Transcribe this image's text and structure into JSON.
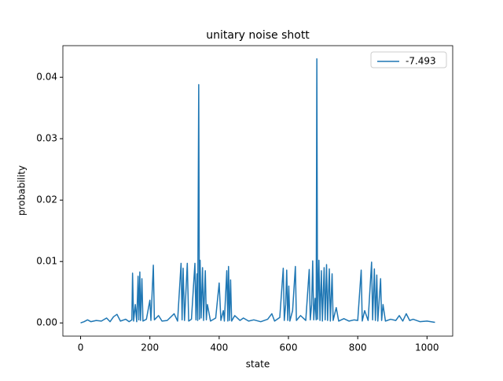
{
  "chart_data": {
    "type": "line",
    "title": "unitary noise shott",
    "x_label": "state",
    "y_label": "probability",
    "x": [
      0,
      10,
      20,
      30,
      45,
      60,
      75,
      85,
      95,
      105,
      115,
      130,
      140,
      148,
      150,
      153,
      158,
      162,
      166,
      168,
      171,
      173,
      177,
      180,
      190,
      200,
      203,
      210,
      213,
      225,
      235,
      250,
      270,
      280,
      290,
      293,
      296,
      300,
      308,
      312,
      320,
      330,
      333,
      336,
      338,
      341,
      343,
      345,
      348,
      352,
      355,
      360,
      363,
      366,
      375,
      390,
      400,
      405,
      412,
      415,
      422,
      425,
      427,
      430,
      433,
      436,
      445,
      460,
      470,
      485,
      500,
      520,
      540,
      552,
      560,
      575,
      585,
      588,
      592,
      595,
      598,
      601,
      604,
      612,
      620,
      623,
      635,
      650,
      660,
      663,
      667,
      670,
      673,
      677,
      680,
      682,
      684,
      688,
      691,
      695,
      698,
      703,
      706,
      710,
      713,
      718,
      721,
      726,
      729,
      738,
      745,
      760,
      775,
      790,
      800,
      810,
      813,
      820,
      830,
      840,
      843,
      848,
      851,
      855,
      858,
      866,
      869,
      873,
      880,
      895,
      910,
      920,
      930,
      940,
      950,
      960,
      980,
      1000,
      1023
    ],
    "series": [
      {
        "name": "-7.493",
        "color": "#1f77b4",
        "values": [
          0,
          0.0002,
          0.0005,
          0.0002,
          0.0004,
          0.0003,
          0.0008,
          0.0002,
          0.001,
          0.0014,
          0.0003,
          0.0006,
          0.0002,
          0.0005,
          0.0081,
          0.0003,
          0.003,
          0.0002,
          0.0076,
          0.0005,
          0.0083,
          0.0004,
          0.0072,
          0.0003,
          0.0006,
          0.0037,
          0.0004,
          0.0094,
          0.0005,
          0.0012,
          0.0003,
          0.0004,
          0.0015,
          0.0003,
          0.0097,
          0.0005,
          0.0089,
          0.0004,
          0.0097,
          0.0003,
          0.0006,
          0.0097,
          0.0005,
          0.008,
          0.0004,
          0.0388,
          0.0006,
          0.0102,
          0.0008,
          0.009,
          0.0004,
          0.0085,
          0.0005,
          0.003,
          0.0003,
          0.0008,
          0.0065,
          0.0004,
          0.002,
          0.0003,
          0.0085,
          0.0003,
          0.0092,
          0.0004,
          0.007,
          0.0003,
          0.0012,
          0.0004,
          0.0008,
          0.0003,
          0.0005,
          0.0002,
          0.0006,
          0.0015,
          0.0003,
          0.0009,
          0.0089,
          0.0004,
          0.003,
          0.0086,
          0.0004,
          0.006,
          0.0003,
          0.002,
          0.0092,
          0.0004,
          0.0012,
          0.0004,
          0.0087,
          0.0005,
          0.003,
          0.0101,
          0.0005,
          0.004,
          0.0005,
          0.043,
          0.0006,
          0.0102,
          0.0004,
          0.0085,
          0.0003,
          0.009,
          0.0005,
          0.0095,
          0.0004,
          0.0088,
          0.0003,
          0.008,
          0.0004,
          0.0025,
          0.0003,
          0.0007,
          0.0003,
          0.0005,
          0.0004,
          0.0086,
          0.0003,
          0.002,
          0.0004,
          0.0099,
          0.0005,
          0.0088,
          0.0004,
          0.0078,
          0.0003,
          0.0072,
          0.0004,
          0.003,
          0.0003,
          0.0006,
          0.0004,
          0.0012,
          0.0003,
          0.0015,
          0.0004,
          0.0006,
          0.0002,
          0.0003,
          0.0001
        ]
      }
    ],
    "xlim": [
      -51.15,
      1074.15
    ],
    "xticks": [
      0,
      200,
      400,
      600,
      800,
      1000
    ],
    "ylim": [
      -0.00215,
      0.04515
    ],
    "yticks": [
      {
        "value": 0,
        "label": "0.00"
      },
      {
        "value": 0.01,
        "label": "0.01"
      },
      {
        "value": 0.02,
        "label": "0.02"
      },
      {
        "value": 0.03,
        "label": "0.03"
      },
      {
        "value": 0.04,
        "label": "0.04"
      }
    ],
    "legend": "upper right"
  }
}
